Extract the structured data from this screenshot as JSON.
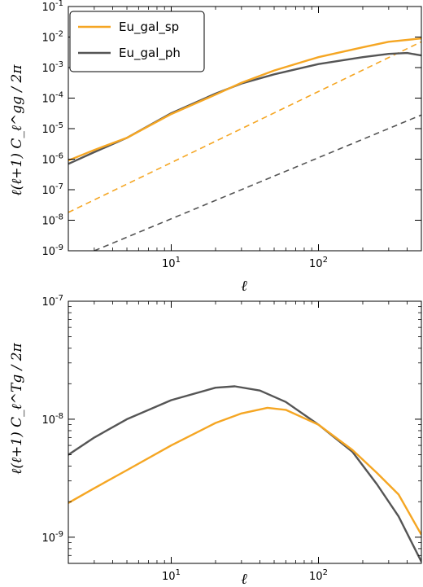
{
  "colors": {
    "sp": "#f5a623",
    "ph": "#555555",
    "sp_dash": "#f5a623",
    "ph_dash": "#555555"
  },
  "chart_data": [
    {
      "type": "line",
      "xscale": "log",
      "yscale": "log",
      "xlim": [
        2,
        500
      ],
      "ylim": [
        1e-09,
        0.1
      ],
      "xlabel": "ℓ",
      "ylabel": "ℓ(ℓ+1) C_ℓ^gg / 2π",
      "x_ticks": [
        {
          "value": 10,
          "base": "10",
          "exp": "1"
        },
        {
          "value": 100,
          "base": "10",
          "exp": "2"
        }
      ],
      "y_ticks": [
        {
          "value": 1e-09,
          "base": "10",
          "exp": "-9"
        },
        {
          "value": 1e-08,
          "base": "10",
          "exp": "-8"
        },
        {
          "value": 1e-07,
          "base": "10",
          "exp": "-7"
        },
        {
          "value": 1e-06,
          "base": "10",
          "exp": "-6"
        },
        {
          "value": 1e-05,
          "base": "10",
          "exp": "-5"
        },
        {
          "value": 0.0001,
          "base": "10",
          "exp": "-4"
        },
        {
          "value": 0.001,
          "base": "10",
          "exp": "-3"
        },
        {
          "value": 0.01,
          "base": "10",
          "exp": "-2"
        },
        {
          "value": 0.1,
          "base": "10",
          "exp": "-1"
        }
      ],
      "legend": {
        "position": "top-left",
        "entries": [
          {
            "label": "Eu_gal_sp",
            "series": "sp"
          },
          {
            "label": "Eu_gal_ph",
            "series": "ph"
          }
        ]
      },
      "series": [
        {
          "key": "sp",
          "style": "solid",
          "x": [
            2,
            3,
            5,
            10,
            20,
            30,
            50,
            100,
            200,
            300,
            500
          ],
          "y": [
            9e-07,
            2e-06,
            5e-06,
            3e-05,
            0.00013,
            0.00032,
            0.0008,
            0.0022,
            0.0046,
            0.007,
            0.009
          ]
        },
        {
          "key": "ph",
          "style": "solid",
          "x": [
            2,
            3,
            5,
            10,
            20,
            30,
            50,
            100,
            200,
            300,
            400,
            500
          ],
          "y": [
            7e-07,
            1.7e-06,
            5e-06,
            3.2e-05,
            0.00014,
            0.0003,
            0.0006,
            0.0013,
            0.0022,
            0.0028,
            0.003,
            0.0025
          ]
        },
        {
          "key": "sp_dash",
          "style": "dashed",
          "x": [
            2,
            500
          ],
          "y": [
            1.8e-08,
            0.007
          ]
        },
        {
          "key": "ph_dash",
          "style": "dashed",
          "x": [
            3,
            500
          ],
          "y": [
            1e-09,
            2.8e-05
          ]
        }
      ]
    },
    {
      "type": "line",
      "xscale": "log",
      "yscale": "log",
      "xlim": [
        2,
        500
      ],
      "ylim": [
        6e-10,
        1e-07
      ],
      "xlabel": "ℓ",
      "ylabel": "ℓ(ℓ+1) C_ℓ^Tg / 2π",
      "x_ticks": [
        {
          "value": 10,
          "base": "10",
          "exp": "1"
        },
        {
          "value": 100,
          "base": "10",
          "exp": "2"
        }
      ],
      "y_ticks": [
        {
          "value": 1e-09,
          "base": "10",
          "exp": "-9"
        },
        {
          "value": 1e-08,
          "base": "10",
          "exp": "-8"
        },
        {
          "value": 1e-07,
          "base": "10",
          "exp": "-7"
        }
      ],
      "series": [
        {
          "key": "sp",
          "style": "solid",
          "x": [
            2,
            3,
            5,
            10,
            20,
            30,
            45,
            60,
            100,
            170,
            250,
            350,
            500
          ],
          "y": [
            1.95e-09,
            2.6e-09,
            3.7e-09,
            6e-09,
            9.3e-09,
            1.12e-08,
            1.25e-08,
            1.2e-08,
            9e-09,
            5.5e-09,
            3.5e-09,
            2.3e-09,
            1.05e-09
          ]
        },
        {
          "key": "ph",
          "style": "solid",
          "x": [
            2,
            3,
            5,
            10,
            20,
            27,
            40,
            60,
            100,
            170,
            250,
            350,
            500
          ],
          "y": [
            5e-09,
            7e-09,
            1e-08,
            1.45e-08,
            1.85e-08,
            1.9e-08,
            1.75e-08,
            1.4e-08,
            9e-09,
            5.3e-09,
            2.8e-09,
            1.5e-09,
            6.2e-10
          ]
        }
      ]
    }
  ]
}
